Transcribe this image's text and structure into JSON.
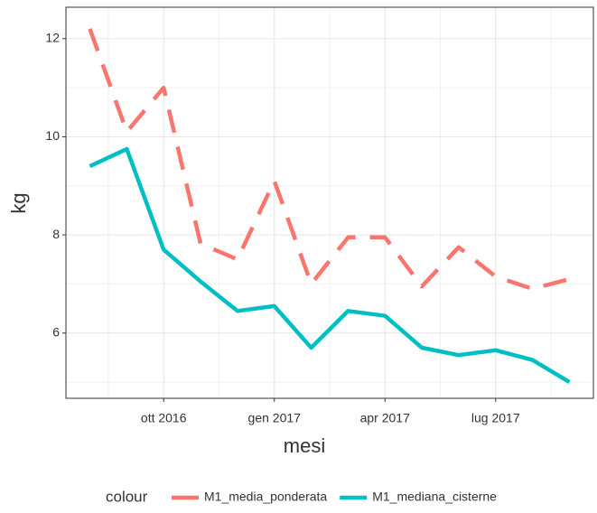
{
  "chart_data": {
    "type": "line",
    "x": [
      "2016-08",
      "2016-09",
      "2016-10",
      "2016-11",
      "2016-12",
      "2017-01",
      "2017-02",
      "2017-03",
      "2017-04",
      "2017-05",
      "2017-06",
      "2017-07",
      "2017-08",
      "2017-09"
    ],
    "xticks": [
      {
        "value": "2016-10",
        "label": "ott 2016"
      },
      {
        "value": "2017-01",
        "label": "gen 2017"
      },
      {
        "value": "2017-04",
        "label": "apr 2017"
      },
      {
        "value": "2017-07",
        "label": "lug 2017"
      }
    ],
    "xlabel": "mesi",
    "ylabel": "kg",
    "ylim": [
      4.67,
      12.64
    ],
    "yticks": [
      6,
      8,
      10,
      12
    ],
    "grid": true,
    "legend_title": "colour",
    "legend": "bottom",
    "series": [
      {
        "name": "M1_media_ponderata",
        "color": "#f8766d",
        "dash": true,
        "values": [
          12.2,
          10.1,
          11.0,
          7.82,
          7.5,
          9.1,
          7.0,
          7.95,
          7.95,
          6.95,
          7.75,
          7.15,
          6.9,
          7.1
        ]
      },
      {
        "name": "M1_mediana_cisterne",
        "color": "#00bfc4",
        "dash": false,
        "values": [
          9.4,
          9.75,
          7.7,
          7.05,
          6.45,
          6.55,
          5.7,
          6.45,
          6.35,
          5.7,
          5.55,
          5.65,
          5.45,
          5.0
        ]
      }
    ]
  }
}
